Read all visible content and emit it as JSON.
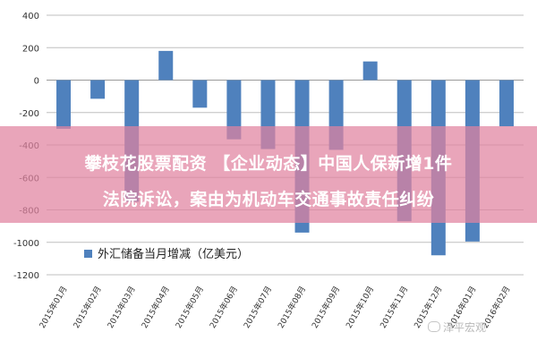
{
  "banner": {
    "line1": "攀枝花股票配资 【企业动态】中国人保新增1件",
    "line2": "法院诉讼，案由为机动车交通事故责任纠纷"
  },
  "watermark": "泽平宏观",
  "colors": {
    "bar": "#4f81bd",
    "grid": "#bfbfbf",
    "banner": "#e182a0"
  },
  "chart_data": {
    "type": "bar",
    "legend_position": "bottom-left",
    "categories": [
      "2015年01月",
      "2015年02月",
      "2015年03月",
      "2015年04月",
      "2015年05月",
      "2015年06月",
      "2015年07月",
      "2015年08月",
      "2015年09月",
      "2015年10月",
      "2015年11月",
      "2015年12月",
      "2016年01月",
      "2016年02月"
    ],
    "series": [
      {
        "name": "外汇储备当月增减（亿美元）",
        "values": [
          -300,
          -115,
          -750,
          180,
          -170,
          -365,
          -425,
          -940,
          -430,
          115,
          -870,
          -1080,
          -995,
          -285
        ]
      }
    ],
    "yticks": [
      "400",
      "200",
      "0",
      "-200",
      "-400",
      "-600",
      "-800",
      "-1000",
      "-1200"
    ],
    "ylim": [
      -1200,
      400
    ],
    "grid": true
  }
}
